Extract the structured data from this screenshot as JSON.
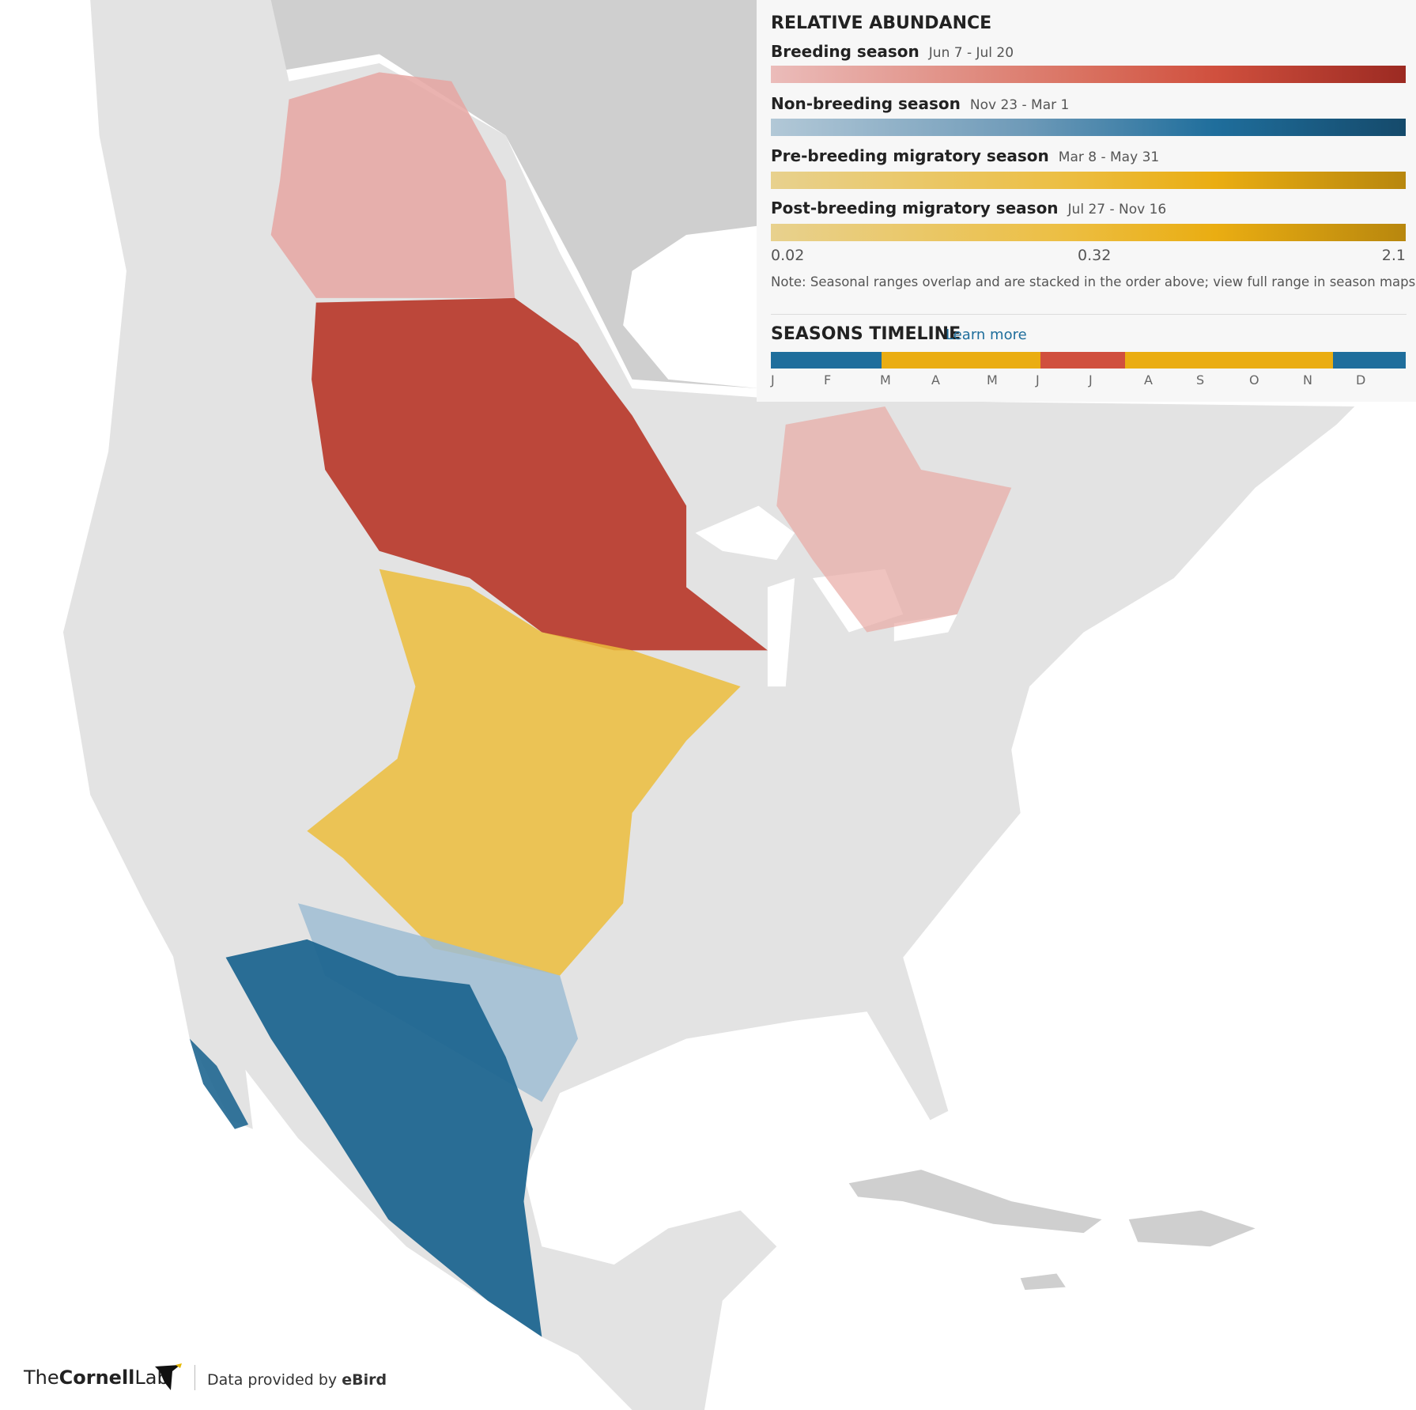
{
  "legend": {
    "title": "RELATIVE ABUNDANCE",
    "seasons": [
      {
        "name": "Breeding season",
        "dates": "Jun 7 - Jul 20"
      },
      {
        "name": "Non-breeding season",
        "dates": "Nov 23 - Mar 1"
      },
      {
        "name": "Pre-breeding migratory season",
        "dates": "Mar 8 - May 31"
      },
      {
        "name": "Post-breeding migratory season",
        "dates": "Jul 27 - Nov 16"
      }
    ],
    "scale": [
      0.02,
      0.32,
      2.1
    ],
    "note": "Note: Seasonal ranges overlap and are stacked in the order above; view full range in season maps."
  },
  "timeline": {
    "title": "SEASONS TIMELINE",
    "link": "Learn more",
    "months": [
      "J",
      "F",
      "M",
      "A",
      "M",
      "J",
      "J",
      "A",
      "S",
      "O",
      "N",
      "D"
    ]
  },
  "footer": {
    "logo_prefix": "The",
    "logo_name": "Cornell",
    "logo_suffix": "Lab",
    "credit": "Data provided by",
    "source": "eBird"
  }
}
